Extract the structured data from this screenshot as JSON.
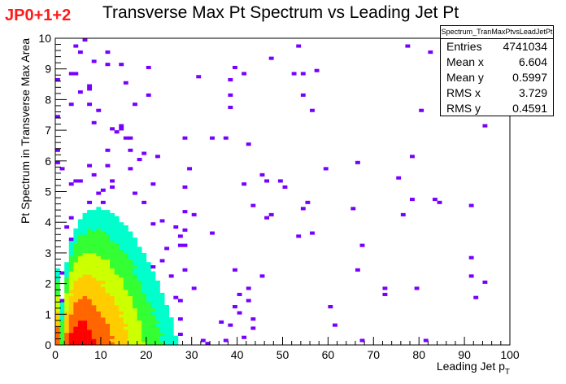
{
  "corner_label": "JP0+1+2",
  "stats_box": {
    "name": "Spectrum_TranMaxPtvsLeadJetPt",
    "rows": [
      {
        "label": "Entries",
        "value": "4741034"
      },
      {
        "label": "Mean x",
        "value": "6.604"
      },
      {
        "label": "Mean y",
        "value": "0.5997"
      },
      {
        "label": "RMS x",
        "value": "3.729"
      },
      {
        "label": "RMS y",
        "value": "0.4591"
      }
    ]
  },
  "chart_data": {
    "type": "heatmap",
    "title": "Transverse Max Pt Spectrum vs Leading Jet Pt",
    "xlabel": "Leading Jet p",
    "xlabel_sub": "T",
    "ylabel": "Pt Spectrum in Transverse Max Area",
    "xlim": [
      0,
      100
    ],
    "ylim": [
      0,
      10
    ],
    "xticks": [
      "0",
      "10",
      "20",
      "30",
      "40",
      "50",
      "60",
      "70",
      "80",
      "90",
      "100"
    ],
    "yticks": [
      "0",
      "1",
      "2",
      "3",
      "4",
      "5",
      "6",
      "7",
      "8",
      "9",
      "10"
    ],
    "bins": {
      "nx": 100,
      "ny": 100
    },
    "colormap": [
      "#ff0000",
      "#ff6600",
      "#ffcc00",
      "#ccff00",
      "#33ff33",
      "#00ffcc",
      "#00ccff",
      "#0055ff",
      "#3300ff",
      "#7700ff"
    ],
    "density_model": {
      "description": "peak near x~5, y~0.3; long tail to higher x and y",
      "x_peak": 5.5,
      "y_peak": 0.3
    }
  }
}
